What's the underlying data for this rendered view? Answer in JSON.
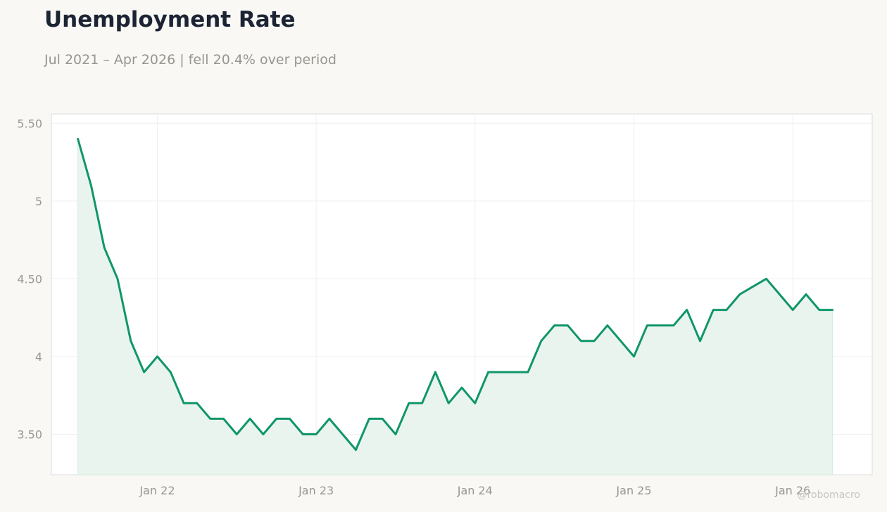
{
  "header": {
    "title": "Unemployment Rate",
    "subtitle": "Jul 2021 – Apr 2026 | fell 20.4% over period"
  },
  "watermark": "@robomacro",
  "colors": {
    "line": "#109669",
    "area": "#e9f4ef",
    "grid": "#efefef",
    "axis_text": "#999690",
    "plot_border": "#dcdcdc"
  },
  "chart_data": {
    "type": "line",
    "title": "Unemployment Rate",
    "xlabel": "",
    "ylabel": "",
    "x_tick_labels": [
      "Jan 22",
      "Jan 23",
      "Jan 24",
      "Jan 25",
      "Jan 26"
    ],
    "y_tick_labels": [
      "3.50",
      "4",
      "4.50",
      "5",
      "5.50"
    ],
    "y_ticks": [
      3.5,
      4,
      4.5,
      5,
      5.5
    ],
    "ylim": [
      3.24,
      5.56
    ],
    "xlim": [
      "2021-05",
      "2026-07"
    ],
    "grid": true,
    "area_fill": true,
    "series": [
      {
        "x": [
          "2021-07",
          "2021-08",
          "2021-09",
          "2021-10",
          "2021-11",
          "2021-12",
          "2022-01",
          "2022-02",
          "2022-03",
          "2022-04",
          "2022-05",
          "2022-06",
          "2022-07",
          "2022-08",
          "2022-09",
          "2022-10",
          "2022-11",
          "2022-12",
          "2023-01",
          "2023-02",
          "2023-03",
          "2023-04",
          "2023-05",
          "2023-06",
          "2023-07",
          "2023-08",
          "2023-09",
          "2023-10",
          "2023-11",
          "2023-12",
          "2024-01",
          "2024-02",
          "2024-03",
          "2024-04",
          "2024-05",
          "2024-06",
          "2024-07",
          "2024-08",
          "2024-09",
          "2024-10",
          "2024-11",
          "2024-12",
          "2025-01",
          "2025-02",
          "2025-03",
          "2025-04",
          "2025-05",
          "2025-06",
          "2025-07",
          "2025-08",
          "2025-09",
          "2025-10",
          "2025-11",
          "2025-12",
          "2026-01",
          "2026-02",
          "2026-03",
          "2026-04"
        ],
        "values": [
          5.4,
          5.1,
          4.7,
          4.5,
          4.1,
          3.9,
          4.0,
          3.9,
          3.7,
          3.7,
          3.6,
          3.6,
          3.5,
          3.6,
          3.5,
          3.6,
          3.6,
          3.5,
          3.5,
          3.6,
          3.5,
          3.4,
          3.6,
          3.6,
          3.5,
          3.7,
          3.7,
          3.9,
          3.7,
          3.8,
          3.7,
          3.9,
          3.9,
          3.9,
          3.9,
          4.1,
          4.2,
          4.2,
          4.1,
          4.1,
          4.2,
          4.1,
          4.0,
          4.2,
          4.2,
          4.2,
          4.3,
          4.1,
          4.3,
          4.3,
          4.4,
          4.45,
          4.5,
          4.4,
          4.3,
          4.4,
          4.3,
          4.3
        ]
      }
    ]
  }
}
